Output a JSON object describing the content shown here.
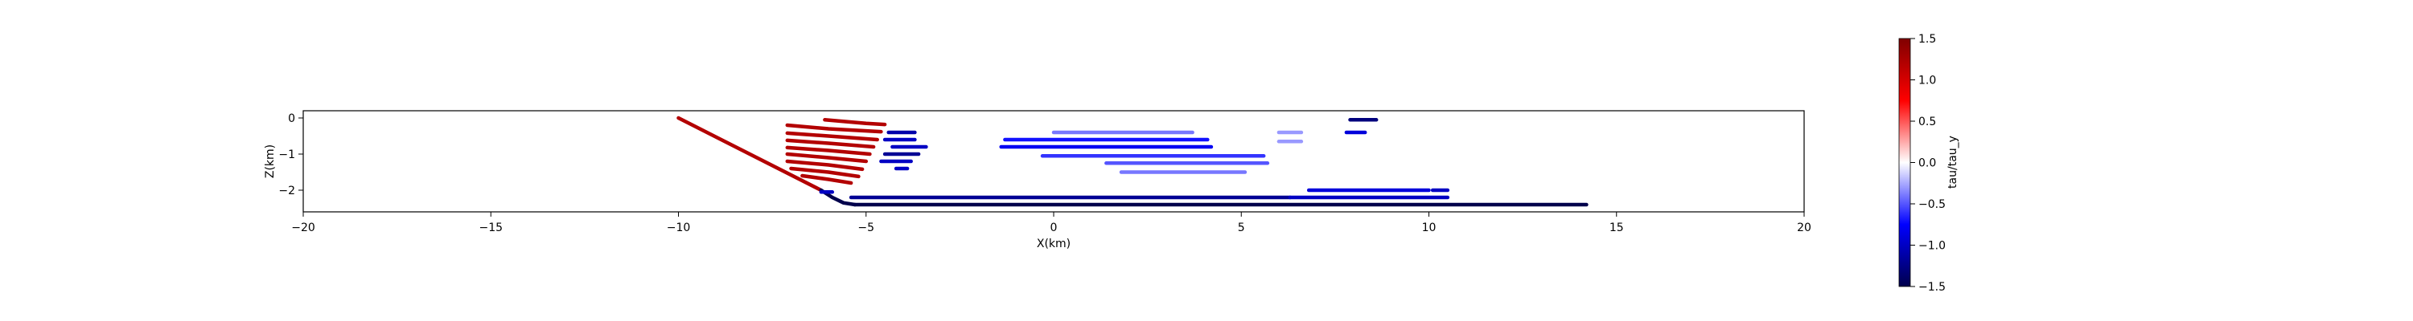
{
  "chart_data": {
    "type": "line",
    "xlabel": "X(km)",
    "ylabel": "Z(km)",
    "xlim": [
      -20,
      20
    ],
    "ylim": [
      -2.6,
      0.2
    ],
    "xticks": [
      -20,
      -15,
      -10,
      -5,
      0,
      5,
      10,
      15,
      20
    ],
    "yticks": [
      0,
      -1,
      -2
    ],
    "grid": false,
    "colorbar": {
      "label": "tau/tau_y",
      "cmap": "seismic",
      "range": [
        -1.5,
        1.5
      ],
      "ticks": [
        1.5,
        1.0,
        0.5,
        0.0,
        -0.5,
        -1.0,
        -1.5
      ],
      "tick_labels": [
        "1.5",
        "1.0",
        "0.5",
        "0.0",
        "−0.5",
        "−1.0",
        "−1.5"
      ]
    },
    "series": [
      {
        "x": [
          -10,
          -6.2
        ],
        "y": [
          0,
          -2.0
        ],
        "value": 1.2
      },
      {
        "x": [
          -6.2,
          -5.9,
          -5.6,
          -5.3
        ],
        "y": [
          -2.0,
          -2.2,
          -2.35,
          -2.4
        ],
        "value": -1.5
      },
      {
        "x": [
          -5.3,
          14.2
        ],
        "y": [
          -2.4,
          -2.4
        ],
        "value": -1.5
      },
      {
        "x": [
          -5.4,
          6.3
        ],
        "y": [
          -2.2,
          -2.2
        ],
        "value": -1.2
      },
      {
        "x": [
          6.3,
          10.5
        ],
        "y": [
          -2.2,
          -2.2
        ],
        "value": -1.0
      },
      {
        "x": [
          6.8,
          10.0
        ],
        "y": [
          -2.0,
          -2.0
        ],
        "value": -0.9
      },
      {
        "x": [
          10.1,
          10.5
        ],
        "y": [
          -2.0,
          -2.0
        ],
        "value": -1.0
      },
      {
        "x": [
          -6.2,
          -5.9
        ],
        "y": [
          -2.05,
          -2.05
        ],
        "value": -1.0
      },
      {
        "x": [
          -6.1,
          -5.0,
          -4.5
        ],
        "y": [
          -0.05,
          -0.15,
          -0.18
        ],
        "value": 1.2
      },
      {
        "x": [
          -7.1,
          -6.0,
          -4.6
        ],
        "y": [
          -0.2,
          -0.3,
          -0.38
        ],
        "value": 1.2
      },
      {
        "x": [
          -7.1,
          -6.0,
          -4.7
        ],
        "y": [
          -0.42,
          -0.5,
          -0.6
        ],
        "value": 1.2
      },
      {
        "x": [
          -7.1,
          -6.0,
          -4.8
        ],
        "y": [
          -0.62,
          -0.7,
          -0.8
        ],
        "value": 1.2
      },
      {
        "x": [
          -7.1,
          -6.0,
          -4.9
        ],
        "y": [
          -0.82,
          -0.9,
          -1.0
        ],
        "value": 1.2
      },
      {
        "x": [
          -7.1,
          -6.0,
          -5.0
        ],
        "y": [
          -1.0,
          -1.1,
          -1.2
        ],
        "value": 1.2
      },
      {
        "x": [
          -7.1,
          -6.0,
          -5.1
        ],
        "y": [
          -1.2,
          -1.3,
          -1.42
        ],
        "value": 1.2
      },
      {
        "x": [
          -7.0,
          -6.0,
          -5.2
        ],
        "y": [
          -1.4,
          -1.5,
          -1.62
        ],
        "value": 1.2
      },
      {
        "x": [
          -6.7,
          -6.0,
          -5.4
        ],
        "y": [
          -1.6,
          -1.7,
          -1.8
        ],
        "value": 1.2
      },
      {
        "x": [
          -4.4,
          -3.7
        ],
        "y": [
          -0.4,
          -0.4
        ],
        "value": -1.1
      },
      {
        "x": [
          -4.5,
          -3.7
        ],
        "y": [
          -0.6,
          -0.6
        ],
        "value": -1.0
      },
      {
        "x": [
          -4.3,
          -3.4
        ],
        "y": [
          -0.8,
          -0.8
        ],
        "value": -1.0
      },
      {
        "x": [
          -4.5,
          -3.6
        ],
        "y": [
          -1.0,
          -1.0
        ],
        "value": -1.2
      },
      {
        "x": [
          -4.6,
          -3.8
        ],
        "y": [
          -1.2,
          -1.2
        ],
        "value": -1.0
      },
      {
        "x": [
          -4.2,
          -3.9
        ],
        "y": [
          -1.4,
          -1.4
        ],
        "value": -1.0
      },
      {
        "x": [
          0.0,
          3.7
        ],
        "y": [
          -0.4,
          -0.4
        ],
        "value": -0.4
      },
      {
        "x": [
          -1.3,
          4.1
        ],
        "y": [
          -0.6,
          -0.6
        ],
        "value": -0.7
      },
      {
        "x": [
          -1.4,
          4.2
        ],
        "y": [
          -0.8,
          -0.8
        ],
        "value": -0.8
      },
      {
        "x": [
          -0.3,
          5.6
        ],
        "y": [
          -1.05,
          -1.05
        ],
        "value": -0.6
      },
      {
        "x": [
          1.4,
          5.7
        ],
        "y": [
          -1.25,
          -1.25
        ],
        "value": -0.5
      },
      {
        "x": [
          1.8,
          5.1
        ],
        "y": [
          -1.5,
          -1.5
        ],
        "value": -0.4
      },
      {
        "x": [
          6.0,
          6.6
        ],
        "y": [
          -0.4,
          -0.4
        ],
        "value": -0.3
      },
      {
        "x": [
          6.0,
          6.6
        ],
        "y": [
          -0.65,
          -0.65
        ],
        "value": -0.3
      },
      {
        "x": [
          7.9,
          8.6
        ],
        "y": [
          -0.05,
          -0.05
        ],
        "value": -1.3
      },
      {
        "x": [
          7.8,
          8.3
        ],
        "y": [
          -0.4,
          -0.4
        ],
        "value": -0.9
      }
    ]
  }
}
